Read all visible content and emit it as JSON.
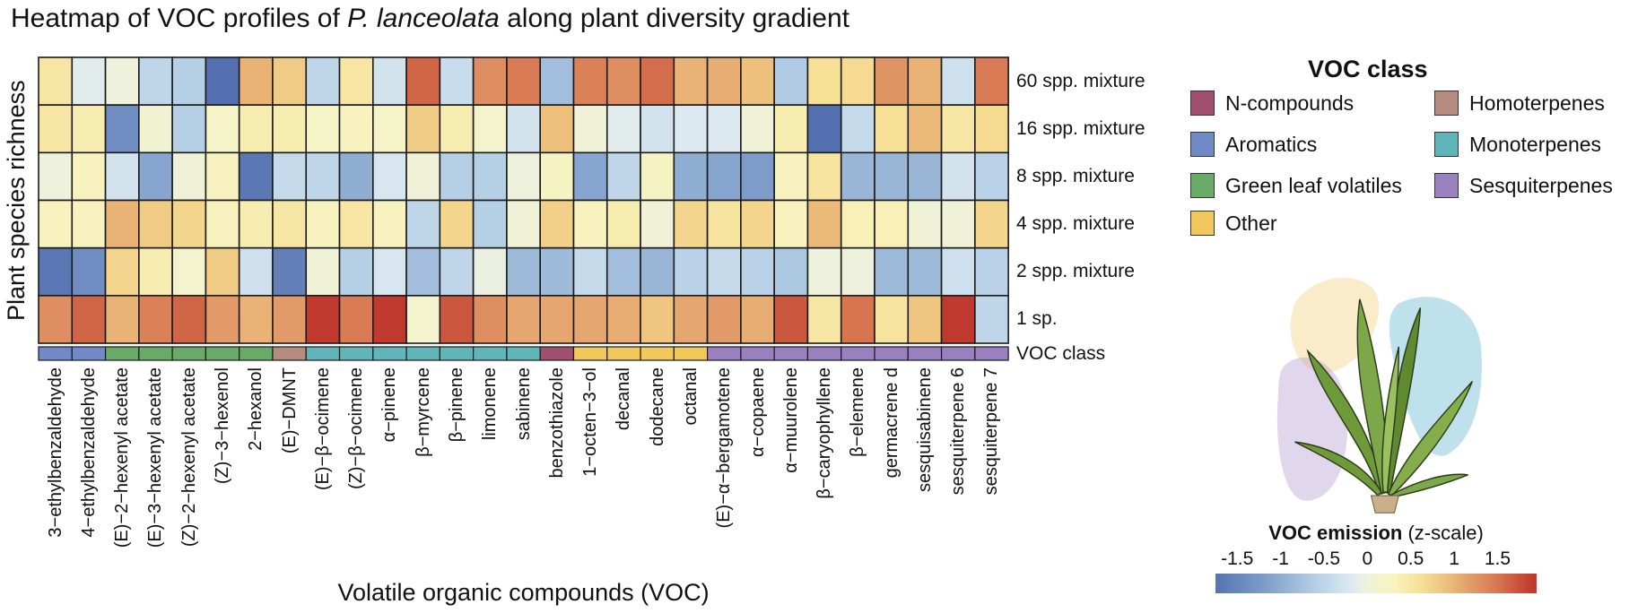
{
  "chart_data": {
    "type": "heatmap",
    "title": "Heatmap of VOC profiles of P. lanceolata along plant diversity gradient",
    "title_italic": "P. lanceolata",
    "xlabel": "Volatile organic compounds (VOC)",
    "ylabel": "Plant species richness",
    "class_row_label": "VOC class",
    "rows": [
      "60 spp. mixture",
      "16 spp. mixture",
      "8 spp. mixture",
      "4 spp. mixture",
      "2 spp. mixture",
      "1 sp."
    ],
    "columns": [
      {
        "label": "3−ethylbenzaldehyde",
        "class": "Aromatics"
      },
      {
        "label": "4−ethylbenzaldehyde",
        "class": "Aromatics"
      },
      {
        "label": "(E)−2−hexenyl acetate",
        "class": "Green leaf volatiles"
      },
      {
        "label": "(E)−3−hexenyl acetate",
        "class": "Green leaf volatiles"
      },
      {
        "label": "(Z)−2−hexenyl acetate",
        "class": "Green leaf volatiles"
      },
      {
        "label": "(Z)−3−hexenol",
        "class": "Green leaf volatiles"
      },
      {
        "label": "2−hexanol",
        "class": "Green leaf volatiles"
      },
      {
        "label": "(E)−DMNT",
        "class": "Homoterpenes"
      },
      {
        "label": "(E)−β−ocimene",
        "class": "Monoterpenes"
      },
      {
        "label": "(Z)−β−ocimene",
        "class": "Monoterpenes"
      },
      {
        "label": "α−pinene",
        "class": "Monoterpenes"
      },
      {
        "label": "β−myrcene",
        "class": "Monoterpenes"
      },
      {
        "label": "β−pinene",
        "class": "Monoterpenes"
      },
      {
        "label": "limonene",
        "class": "Monoterpenes"
      },
      {
        "label": "sabinene",
        "class": "Monoterpenes"
      },
      {
        "label": "benzothiazole",
        "class": "N-compounds"
      },
      {
        "label": "1−octen−3−ol",
        "class": "Other"
      },
      {
        "label": "decanal",
        "class": "Other"
      },
      {
        "label": "dodecane",
        "class": "Other"
      },
      {
        "label": "octanal",
        "class": "Other"
      },
      {
        "label": "(E)−α−bergamotene",
        "class": "Sesquiterpenes"
      },
      {
        "label": "α−copaene",
        "class": "Sesquiterpenes"
      },
      {
        "label": "α−muurolene",
        "class": "Sesquiterpenes"
      },
      {
        "label": "β−caryophyllene",
        "class": "Sesquiterpenes"
      },
      {
        "label": "β−elemene",
        "class": "Sesquiterpenes"
      },
      {
        "label": "germacrene d",
        "class": "Sesquiterpenes"
      },
      {
        "label": "sesquisabinene",
        "class": "Sesquiterpenes"
      },
      {
        "label": "sesquiterpene 6",
        "class": "Sesquiterpenes"
      },
      {
        "label": "sesquiterpene 7",
        "class": "Sesquiterpenes"
      }
    ],
    "values": [
      [
        0.5,
        -0.15,
        0,
        -0.5,
        -0.6,
        -1.8,
        1.0,
        0.8,
        -0.5,
        0.5,
        -0.3,
        1.6,
        -0.4,
        1.3,
        1.45,
        -0.8,
        1.4,
        1.3,
        1.55,
        1.0,
        1.05,
        0.9,
        -0.65,
        0.6,
        0.65,
        1.25,
        1.0,
        -0.35,
        1.45
      ],
      [
        0.5,
        0.4,
        -1.4,
        0.1,
        -0.6,
        0.2,
        0.4,
        0.4,
        0.2,
        0.3,
        0.2,
        0.8,
        0.4,
        0.15,
        -0.3,
        0.9,
        0.05,
        -0.15,
        -0.3,
        -0.2,
        -0.2,
        0.05,
        0.4,
        -1.8,
        -0.45,
        0.6,
        0.95,
        0.5,
        0.65
      ],
      [
        0,
        0.3,
        -0.3,
        -1.1,
        0.05,
        0.3,
        -1.7,
        -0.45,
        -0.5,
        -1.0,
        -0.25,
        0.05,
        -0.6,
        -0.6,
        0,
        0.25,
        -1.1,
        -0.5,
        0.25,
        -1.0,
        -1.1,
        -1.2,
        0.3,
        0.55,
        -0.9,
        -0.9,
        -0.9,
        -0.3,
        -0.55
      ],
      [
        0.3,
        0.3,
        1.0,
        0.8,
        0.7,
        0.3,
        0.4,
        0.5,
        0.3,
        0.5,
        0.3,
        -0.5,
        0.7,
        -0.6,
        0.05,
        0.75,
        0.3,
        0.4,
        0.05,
        0.7,
        0.55,
        0.7,
        0.3,
        0.95,
        0.35,
        0.35,
        0.05,
        0.05,
        0.7
      ],
      [
        -1.7,
        -1.4,
        0.7,
        0.4,
        0.15,
        0.8,
        -0.35,
        -1.6,
        0.05,
        -0.6,
        -0.25,
        -0.8,
        -0.5,
        -0.05,
        -0.85,
        -0.85,
        -0.45,
        -0.8,
        -0.9,
        -0.55,
        -0.45,
        -0.55,
        -0.7,
        0,
        0,
        -0.85,
        -0.85,
        -0.35,
        -0.55
      ],
      [
        1.3,
        1.6,
        1.0,
        1.4,
        1.6,
        1.2,
        1.0,
        1.2,
        1.9,
        1.45,
        2.0,
        0.15,
        1.7,
        1.3,
        1.1,
        1.1,
        1.1,
        1.05,
        0.85,
        1.1,
        1.2,
        1.05,
        1.7,
        0.5,
        1.5,
        0.55,
        0.85,
        2.0,
        -0.5
      ]
    ],
    "legend": {
      "title": "VOC class",
      "placement": "right",
      "items": [
        {
          "name": "N-compounds",
          "color": "#a0506e"
        },
        {
          "name": "Aromatics",
          "color": "#7189c6"
        },
        {
          "name": "Green leaf volatiles",
          "color": "#6aaa68"
        },
        {
          "name": "Other",
          "color": "#f0c85c"
        },
        {
          "name": "Homoterpenes",
          "color": "#b58b80"
        },
        {
          "name": "Monoterpenes",
          "color": "#5fb5b8"
        },
        {
          "name": "Sesquiterpenes",
          "color": "#9a80bf"
        }
      ]
    },
    "colorbar": {
      "title_bold": "VOC emission",
      "title_rest": " (z-scale)",
      "range": [
        -1.75,
        1.95
      ],
      "ticks": [
        "-1.5",
        "-1",
        "-0.5",
        "0",
        "0.5",
        "1",
        "1.5"
      ],
      "stops": [
        {
          "v": -1.8,
          "c": "#5470b0"
        },
        {
          "v": -1.2,
          "c": "#7e9cc9"
        },
        {
          "v": -0.6,
          "c": "#b5cfe5"
        },
        {
          "v": -0.2,
          "c": "#dde9f1"
        },
        {
          "v": 0,
          "c": "#eef2dc"
        },
        {
          "v": 0.3,
          "c": "#f8f3be"
        },
        {
          "v": 0.6,
          "c": "#f6e096"
        },
        {
          "v": 0.9,
          "c": "#edc07c"
        },
        {
          "v": 1.2,
          "c": "#e19a68"
        },
        {
          "v": 1.5,
          "c": "#d77550"
        },
        {
          "v": 1.9,
          "c": "#c0392e"
        }
      ]
    }
  }
}
